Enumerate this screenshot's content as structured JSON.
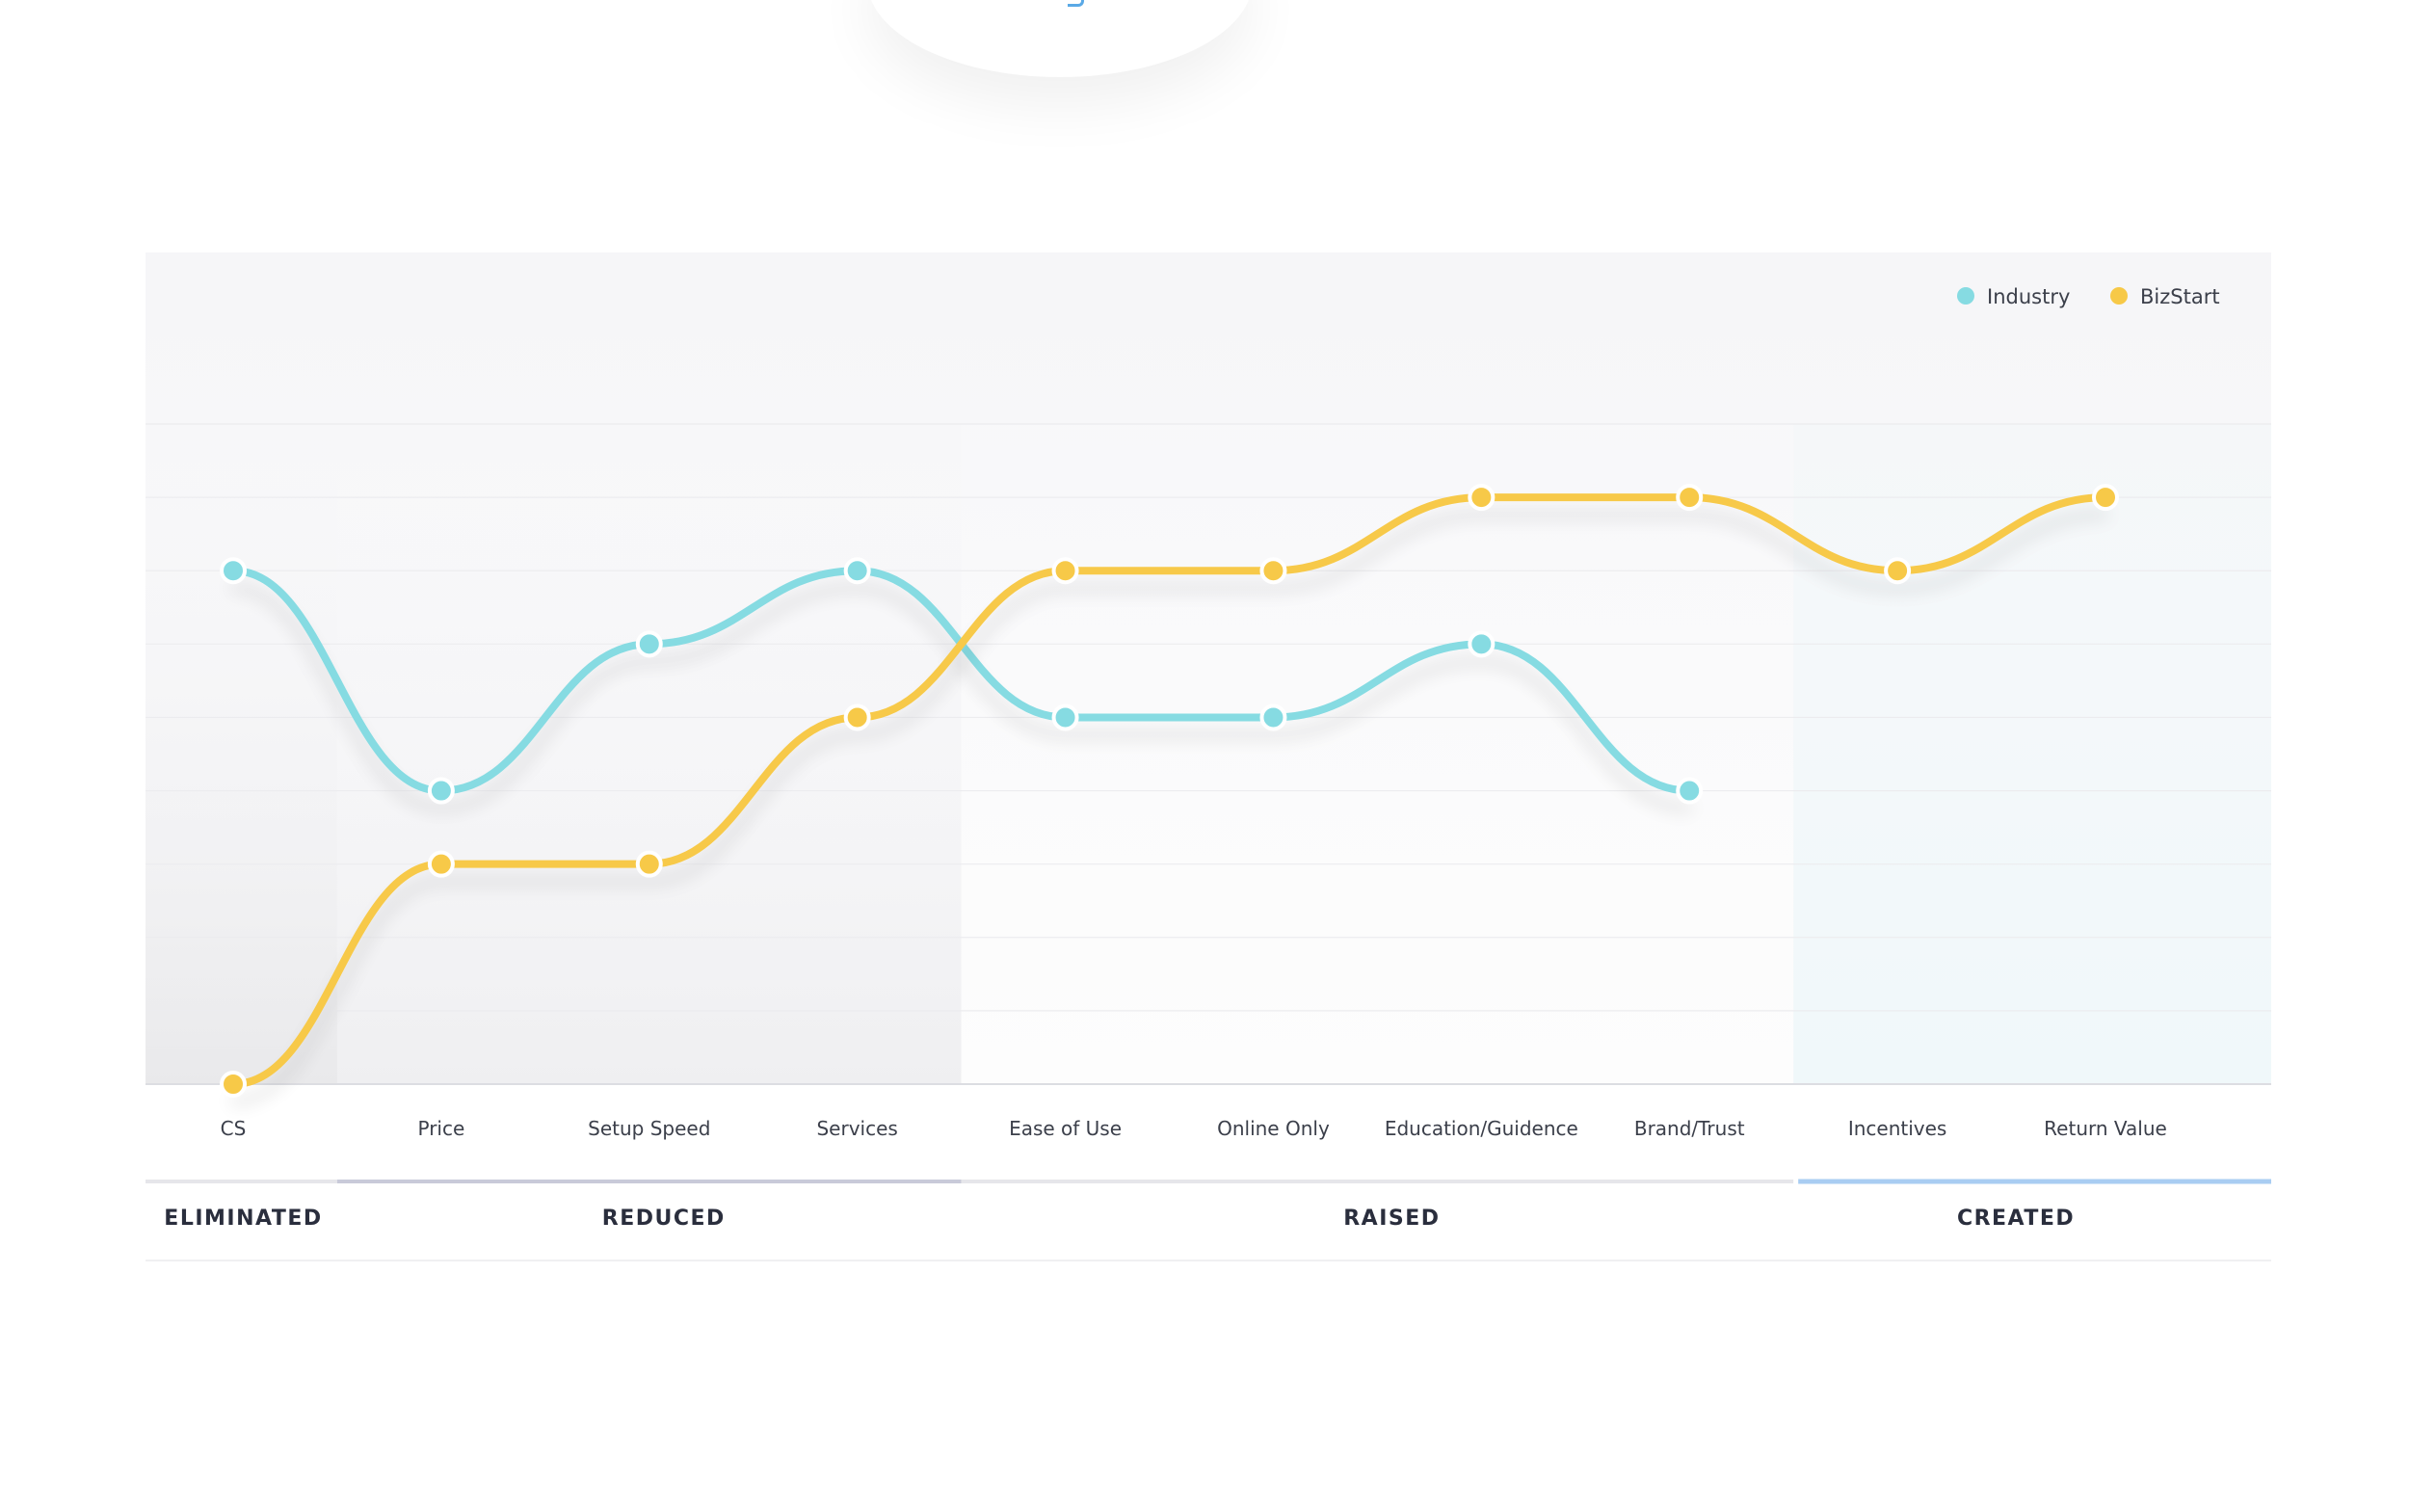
{
  "chart_data": {
    "type": "line",
    "title": "",
    "xlabel": "",
    "ylabel": "",
    "categories": [
      "CS",
      "Price",
      "Setup Speed",
      "Services",
      "Ease of Use",
      "Online Only",
      "Education/Guidence",
      "Brand/Trust",
      "Incentives",
      "Return Value"
    ],
    "ylim": [
      0,
      9
    ],
    "grid": true,
    "legend_position": "top-right",
    "series": [
      {
        "name": "Industry",
        "color": "#86dbe2",
        "values": [
          7,
          4,
          6,
          7,
          5,
          5,
          6,
          4,
          null,
          null
        ]
      },
      {
        "name": "BizStart",
        "color": "#f7c948",
        "values": [
          0,
          3,
          3,
          5,
          7,
          7,
          8,
          8,
          7,
          8
        ]
      }
    ],
    "groups": [
      {
        "label": "ELIMINATED",
        "from": 0,
        "to": 0,
        "shade": "#eeeeef",
        "rule": "#e6e6ea"
      },
      {
        "label": "REDUCED",
        "from": 1,
        "to": 3,
        "shade": "#f3f3f5",
        "rule": "#c9cad9"
      },
      {
        "label": "RAISED",
        "from": 4,
        "to": 7,
        "shade": "#fafafb",
        "rule": "#e6e6ea"
      },
      {
        "label": "CREATED",
        "from": 8,
        "to": 9,
        "shade": "#f2f8fa",
        "rule": "#a9cdf2"
      }
    ]
  }
}
